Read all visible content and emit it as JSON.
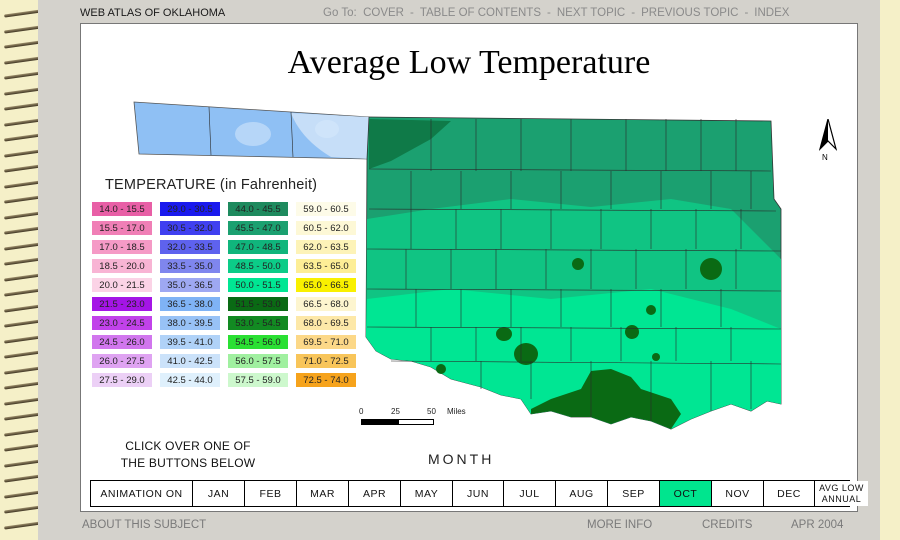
{
  "header": {
    "atlas_title": "WEB ATLAS OF OKLAHOMA",
    "goto_label": "Go To:",
    "nav": [
      "COVER",
      "TABLE OF CONTENTS",
      "NEXT TOPIC",
      "PREVIOUS TOPIC",
      "INDEX"
    ],
    "separator": "-"
  },
  "map": {
    "title": "Average Low Temperature",
    "north_label": "N",
    "scale": {
      "ticks": [
        "0",
        "25",
        "50"
      ],
      "unit": "Miles"
    }
  },
  "legend": {
    "title": "TEMPERATURE (in Fahrenheit)",
    "items": [
      {
        "label": "14.0 - 15.5",
        "color": "#e85fa6"
      },
      {
        "label": "29.0 - 30.5",
        "color": "#1a1aee"
      },
      {
        "label": "44.0 - 45.5",
        "color": "#1e8a5e"
      },
      {
        "label": "59.0 - 60.5",
        "color": "#fdfbe8"
      },
      {
        "label": "15.5 - 17.0",
        "color": "#f07fb6"
      },
      {
        "label": "30.5 - 32.0",
        "color": "#4040f0"
      },
      {
        "label": "45.5 - 47.0",
        "color": "#1ba070"
      },
      {
        "label": "60.5 - 62.0",
        "color": "#fdf8d6"
      },
      {
        "label": "17.0 - 18.5",
        "color": "#f59ac6"
      },
      {
        "label": "32.0 - 33.5",
        "color": "#5e62ee"
      },
      {
        "label": "47.0 - 48.5",
        "color": "#10b57c"
      },
      {
        "label": "62.0 - 63.5",
        "color": "#fdf3b8"
      },
      {
        "label": "18.5 - 20.0",
        "color": "#f8b4d4"
      },
      {
        "label": "33.5 - 35.0",
        "color": "#7f86ee"
      },
      {
        "label": "48.5 - 50.0",
        "color": "#0ccc88"
      },
      {
        "label": "63.5 - 65.0",
        "color": "#fdee96"
      },
      {
        "label": "20.0 - 21.5",
        "color": "#fbd3e6"
      },
      {
        "label": "35.0 - 36.5",
        "color": "#9ea8f2"
      },
      {
        "label": "50.0 - 51.5",
        "color": "#00e693"
      },
      {
        "label": "65.0 - 66.5",
        "color": "#f9f000"
      },
      {
        "label": "21.5 - 23.0",
        "color": "#a415e6"
      },
      {
        "label": "36.5 - 38.0",
        "color": "#7fb3f5"
      },
      {
        "label": "51.5 - 53.0",
        "color": "#0a6a14"
      },
      {
        "label": "66.5 - 68.0",
        "color": "#fdf5cf"
      },
      {
        "label": "23.0 - 24.5",
        "color": "#c142ea"
      },
      {
        "label": "38.0 - 39.5",
        "color": "#98c2f6"
      },
      {
        "label": "53.0 - 54.5",
        "color": "#128a22"
      },
      {
        "label": "68.0 - 69.5",
        "color": "#fde8a8"
      },
      {
        "label": "24.5 - 26.0",
        "color": "#d176ee"
      },
      {
        "label": "39.5 - 41.0",
        "color": "#b0d2f8"
      },
      {
        "label": "54.5 - 56.0",
        "color": "#2ae033"
      },
      {
        "label": "69.5 - 71.0",
        "color": "#fcd888"
      },
      {
        "label": "26.0 - 27.5",
        "color": "#dfa3f2"
      },
      {
        "label": "41.0 - 42.5",
        "color": "#cbe2fa"
      },
      {
        "label": "56.0 - 57.5",
        "color": "#a0f0a0"
      },
      {
        "label": "71.0 - 72.5",
        "color": "#f8c55a"
      },
      {
        "label": "27.5 - 29.0",
        "color": "#ecd0f6"
      },
      {
        "label": "42.5 - 44.0",
        "color": "#dff0fc"
      },
      {
        "label": "57.5 - 59.0",
        "color": "#cdf8cd"
      },
      {
        "label": "72.5 - 74.0",
        "color": "#f6a31c"
      }
    ]
  },
  "instructions": {
    "line1": "CLICK OVER ONE OF",
    "line2": "THE BUTTONS BELOW"
  },
  "month_label": "MONTH",
  "buttons": {
    "animation": "ANIMATION ON",
    "months": [
      "JAN",
      "FEB",
      "MAR",
      "APR",
      "MAY",
      "JUN",
      "JUL",
      "AUG",
      "SEP",
      "OCT",
      "NOV",
      "DEC"
    ],
    "selected": "OCT",
    "annual_line1": "AVG LOW",
    "annual_line2": "ANNUAL",
    "active_color": "#00e58e"
  },
  "footer": {
    "about": "ABOUT THIS SUBJECT",
    "more_info": "MORE INFO",
    "credits": "CREDITS",
    "date": "APR 2004"
  }
}
